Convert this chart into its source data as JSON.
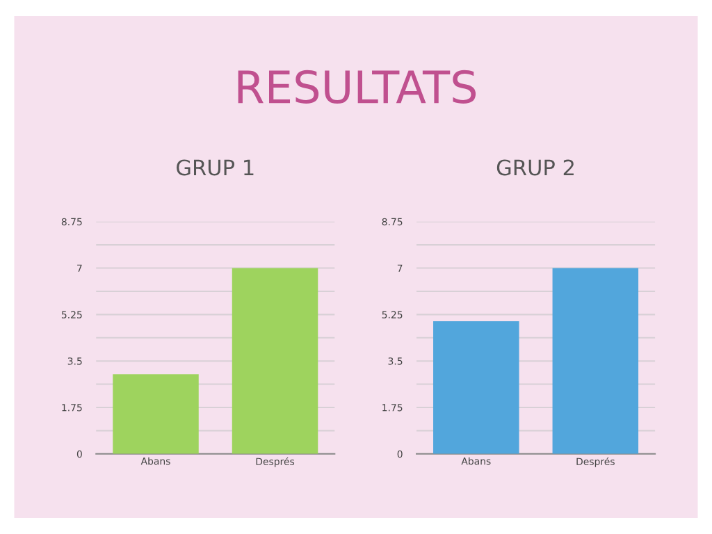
{
  "chart_data": [
    {
      "type": "bar",
      "title": "GRUP 1",
      "annotations": [
        "RESULTATS"
      ],
      "categories": [
        "Abans",
        "Després"
      ],
      "values": [
        3,
        7
      ],
      "color": "#9ed35e",
      "ylim": [
        0,
        8.75
      ],
      "yticks": [
        0,
        {
          "value": 0.875,
          "label": null
        },
        1.75,
        {
          "value": 2.625,
          "label": null
        },
        3.5,
        {
          "value": 4.375,
          "label": null
        },
        5.25,
        {
          "value": 6.125,
          "label": null
        },
        7,
        {
          "value": 7.875,
          "label": null
        },
        8.75
      ],
      "grid": "y"
    },
    {
      "type": "bar",
      "title": "GRUP 2",
      "categories": [
        "Abans",
        "Després"
      ],
      "values": [
        5,
        7
      ],
      "color": "#52a6dc",
      "ylim": [
        0,
        8.75
      ],
      "yticks": [
        0,
        {
          "value": 0.875,
          "label": null
        },
        1.75,
        {
          "value": 2.625,
          "label": null
        },
        3.5,
        {
          "value": 4.375,
          "label": null
        },
        5.25,
        {
          "value": 6.125,
          "label": null
        },
        7,
        {
          "value": 7.875,
          "label": null
        },
        8.75
      ],
      "grid": "y"
    }
  ]
}
